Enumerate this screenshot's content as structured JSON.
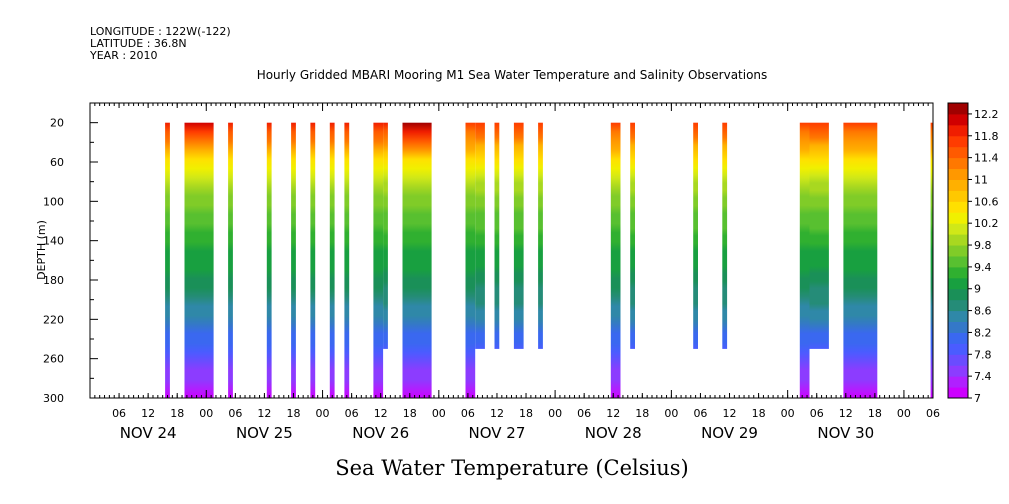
{
  "meta": {
    "longitude": "LONGITUDE : 122W(-122)",
    "latitude": "LATITUDE : 36.8N",
    "year": "YEAR : 2010"
  },
  "chart_data": {
    "type": "heatmap",
    "title": "Hourly Gridded MBARI Mooring M1 Sea Water Temperature and Salinity Observations",
    "ylabel": "DEPTH (m)",
    "xlabel": "",
    "footer_title": "Sea Water Temperature (Celsius)",
    "x_unit": "hours since NOV 24 00:00",
    "xlim": [
      0,
      174
    ],
    "x_ticks": [
      6,
      12,
      18,
      24,
      30,
      36,
      42,
      48,
      54,
      60,
      66,
      72,
      78,
      84,
      90,
      96,
      102,
      108,
      114,
      120,
      126,
      132,
      138,
      144,
      150,
      156,
      162,
      168,
      174
    ],
    "x_tick_labels": [
      "06",
      "12",
      "18",
      "00",
      "06",
      "12",
      "18",
      "00",
      "06",
      "12",
      "18",
      "00",
      "06",
      "12",
      "18",
      "00",
      "06",
      "12",
      "18",
      "00",
      "06",
      "12",
      "18",
      "00",
      "06",
      "12",
      "18",
      "00",
      "06"
    ],
    "day_labels": [
      {
        "label": "NOV 24",
        "x": 12
      },
      {
        "label": "NOV 25",
        "x": 36
      },
      {
        "label": "NOV 26",
        "x": 60
      },
      {
        "label": "NOV 27",
        "x": 84
      },
      {
        "label": "NOV 28",
        "x": 108
      },
      {
        "label": "NOV 29",
        "x": 132
      },
      {
        "label": "NOV 30",
        "x": 156
      }
    ],
    "ylim": [
      300,
      0
    ],
    "y_ticks": [
      20,
      60,
      100,
      140,
      180,
      220,
      260,
      300
    ],
    "colorbar": {
      "levels": [
        7,
        7.2,
        7.4,
        7.6,
        7.8,
        8,
        8.2,
        8.4,
        8.6,
        8.8,
        9,
        9.2,
        9.4,
        9.6,
        9.8,
        10,
        10.2,
        10.4,
        10.6,
        10.8,
        11,
        11.2,
        11.4,
        11.6,
        11.8,
        12,
        12.2,
        12.4
      ],
      "labels": [
        "7",
        "7.4",
        "7.8",
        "8.2",
        "8.6",
        "9",
        "9.4",
        "9.8",
        "10.2",
        "10.6",
        "11",
        "11.4",
        "11.8",
        "12.2"
      ],
      "colors": [
        "#cc00ff",
        "#b020ff",
        "#8c3cff",
        "#6a4cff",
        "#4a5cff",
        "#3a68f0",
        "#3478c8",
        "#2f88a8",
        "#258c78",
        "#1a9058",
        "#18a040",
        "#30b030",
        "#58c030",
        "#80cc28",
        "#a8d820",
        "#d0e818",
        "#f0f000",
        "#ffe000",
        "#ffc800",
        "#ffb000",
        "#ff9800",
        "#ff7800",
        "#ff5a00",
        "#ff3c00",
        "#f01e00",
        "#d00000",
        "#a00000"
      ]
    },
    "profile": [
      {
        "depth": 20,
        "temp": 12.0
      },
      {
        "depth": 40,
        "temp": 11.3
      },
      {
        "depth": 60,
        "temp": 10.4
      },
      {
        "depth": 80,
        "temp": 10.0
      },
      {
        "depth": 100,
        "temp": 9.7
      },
      {
        "depth": 140,
        "temp": 9.3
      },
      {
        "depth": 180,
        "temp": 8.9
      },
      {
        "depth": 220,
        "temp": 8.4
      },
      {
        "depth": 260,
        "temp": 7.8
      },
      {
        "depth": 300,
        "temp": 7.1
      }
    ],
    "series": [
      {
        "x_start": 15.5,
        "x_end": 16.5,
        "depth_top": 20,
        "depth_bottom": 300,
        "surface": 11.8
      },
      {
        "x_start": 19.5,
        "x_end": 25.5,
        "depth_top": 20,
        "depth_bottom": 300,
        "surface": 12.0
      },
      {
        "x_start": 28.5,
        "x_end": 29.5,
        "depth_top": 20,
        "depth_bottom": 300,
        "surface": 11.8
      },
      {
        "x_start": 36.5,
        "x_end": 37.5,
        "depth_top": 20,
        "depth_bottom": 300,
        "surface": 11.8
      },
      {
        "x_start": 41.5,
        "x_end": 42.5,
        "depth_top": 20,
        "depth_bottom": 300,
        "surface": 11.8
      },
      {
        "x_start": 45.5,
        "x_end": 46.5,
        "depth_top": 20,
        "depth_bottom": 300,
        "surface": 11.8
      },
      {
        "x_start": 49.5,
        "x_end": 50.5,
        "depth_top": 20,
        "depth_bottom": 300,
        "surface": 11.8
      },
      {
        "x_start": 52.5,
        "x_end": 53.5,
        "depth_top": 20,
        "depth_bottom": 300,
        "surface": 11.8
      },
      {
        "x_start": 58.5,
        "x_end": 60.5,
        "depth_top": 20,
        "depth_bottom": 300,
        "surface": 11.8
      },
      {
        "x_start": 60.5,
        "x_end": 61.5,
        "depth_top": 20,
        "depth_bottom": 250,
        "surface": 11.8
      },
      {
        "x_start": 64.5,
        "x_end": 70.5,
        "depth_top": 20,
        "depth_bottom": 300,
        "surface": 12.2
      },
      {
        "x_start": 77.5,
        "x_end": 79.5,
        "depth_top": 20,
        "depth_bottom": 300,
        "surface": 11.6
      },
      {
        "x_start": 79.5,
        "x_end": 81.5,
        "depth_top": 20,
        "depth_bottom": 250,
        "surface": 11.6
      },
      {
        "x_start": 83.5,
        "x_end": 84.5,
        "depth_top": 20,
        "depth_bottom": 250,
        "surface": 11.6
      },
      {
        "x_start": 87.5,
        "x_end": 89.5,
        "depth_top": 20,
        "depth_bottom": 250,
        "surface": 11.6
      },
      {
        "x_start": 92.5,
        "x_end": 93.5,
        "depth_top": 20,
        "depth_bottom": 250,
        "surface": 11.6
      },
      {
        "x_start": 107.5,
        "x_end": 109.5,
        "depth_top": 20,
        "depth_bottom": 300,
        "surface": 11.6
      },
      {
        "x_start": 111.5,
        "x_end": 112.5,
        "depth_top": 20,
        "depth_bottom": 250,
        "surface": 11.6
      },
      {
        "x_start": 124.5,
        "x_end": 125.5,
        "depth_top": 20,
        "depth_bottom": 250,
        "surface": 11.6
      },
      {
        "x_start": 130.5,
        "x_end": 131.5,
        "depth_top": 20,
        "depth_bottom": 250,
        "surface": 11.6
      },
      {
        "x_start": 146.5,
        "x_end": 148.5,
        "depth_top": 20,
        "depth_bottom": 300,
        "surface": 11.6
      },
      {
        "x_start": 148.5,
        "x_end": 152.5,
        "depth_top": 20,
        "depth_bottom": 250,
        "surface": 11.6
      },
      {
        "x_start": 155.5,
        "x_end": 162.5,
        "depth_top": 20,
        "depth_bottom": 300,
        "surface": 11.6
      },
      {
        "x_start": 173.5,
        "x_end": 174,
        "depth_top": 20,
        "depth_bottom": 300,
        "surface": 11.6
      }
    ]
  }
}
